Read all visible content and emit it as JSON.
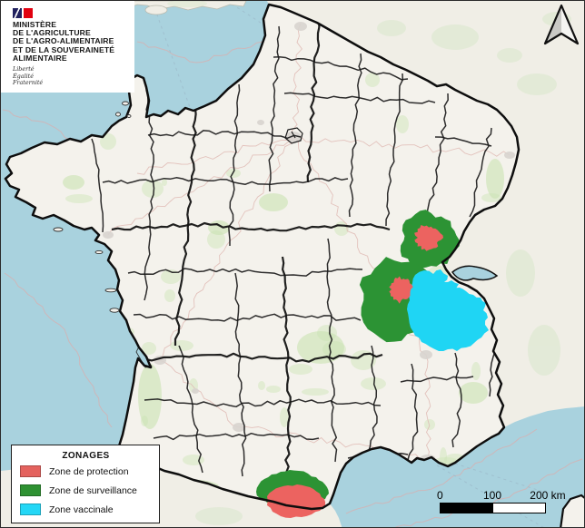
{
  "ministry": {
    "lines": [
      "MINISTÈRE",
      "DE L'AGRICULTURE",
      "DE L'AGRO-ALIMENTAIRE",
      "ET DE LA SOUVERAINETÉ",
      "ALIMENTAIRE"
    ],
    "motto": [
      "Liberté",
      "Égalité",
      "Fraternité"
    ]
  },
  "legend": {
    "title": "ZONAGES",
    "items": [
      {
        "key": "protection",
        "label": "Zone de protection",
        "color": "#e4625e"
      },
      {
        "key": "surveillance",
        "label": "Zone de surveillance",
        "color": "#2e9132"
      },
      {
        "key": "vaccinale",
        "label": "Zone vaccinale",
        "color": "#24d7f6"
      }
    ]
  },
  "scalebar": {
    "labels": [
      "0",
      "100",
      "200 km"
    ]
  },
  "map": {
    "sea_color": "#a9d2de",
    "land_color": "#f4f2ec",
    "foreign_land_color": "#f0eee6",
    "border_color": "#0e0e0e",
    "zone_colors": {
      "protection": "#ec6360",
      "surveillance": "#2c9334",
      "vaccinale": "#1fd5f4"
    }
  }
}
